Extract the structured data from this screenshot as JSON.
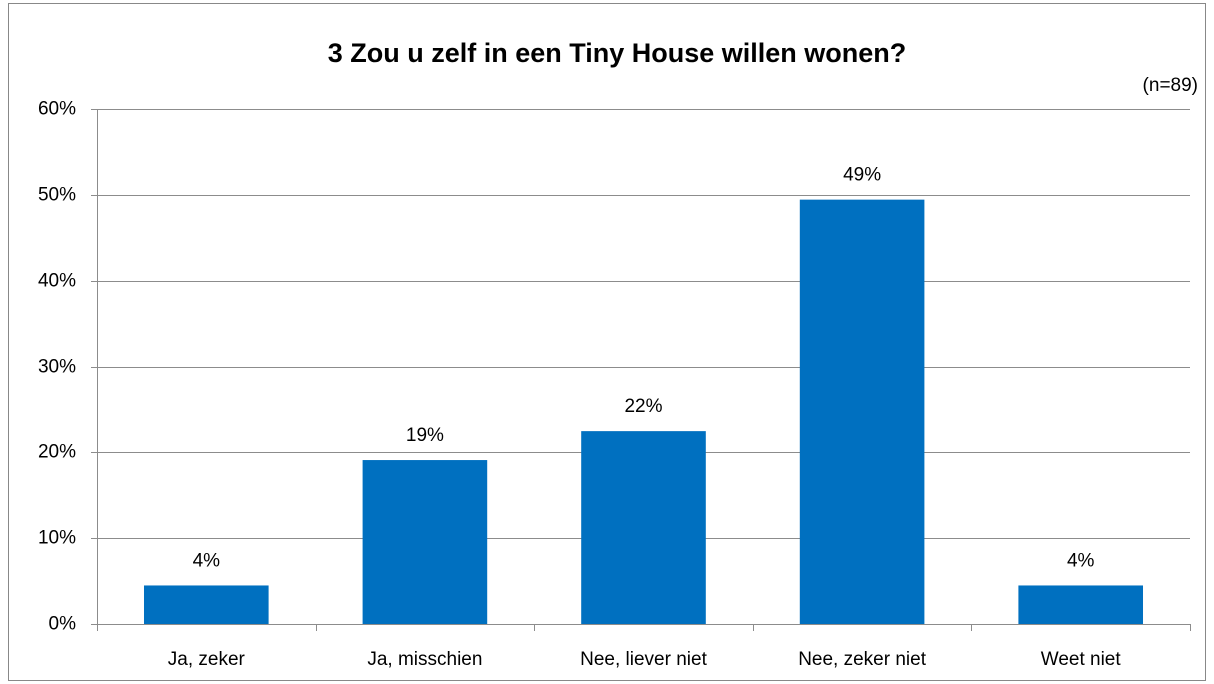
{
  "chart_data": {
    "type": "bar",
    "title": "3 Zou u zelf in een Tiny House willen wonen?",
    "subtitle": "(n=89)",
    "categories": [
      "Ja, zeker",
      "Ja, misschien",
      "Nee, liever niet",
      "Nee, zeker niet",
      "Weet niet"
    ],
    "values": [
      4.49,
      19.1,
      22.47,
      49.44,
      4.49
    ],
    "value_labels": [
      "4%",
      "19%",
      "22%",
      "49%",
      "4%"
    ],
    "color": "#0070c0",
    "ylim": [
      0,
      60
    ],
    "yticks": [
      {
        "value": 0,
        "label": "0%"
      },
      {
        "value": 10,
        "label": "10%"
      },
      {
        "value": 20,
        "label": "20%"
      },
      {
        "value": 30,
        "label": "30%"
      },
      {
        "value": 40,
        "label": "40%"
      },
      {
        "value": 50,
        "label": "50%"
      },
      {
        "value": 60,
        "label": "60%"
      }
    ],
    "grid": true
  }
}
